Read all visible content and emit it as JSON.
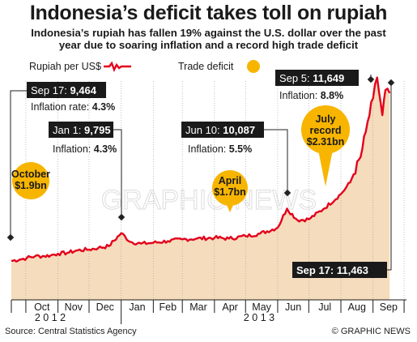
{
  "title": "Indonesia’s deficit takes toll on rupiah",
  "subtitle_line1": "Indonesia’s rupiah has fallen 19% against the U.S. dollar over the past",
  "subtitle_line2": "year due to soaring inflation and a record high trade deficit",
  "legend": {
    "rupiah": "Rupiah per US$",
    "deficit": "Trade deficit"
  },
  "source": "Source: Central Statistics Agency",
  "credit": "© GRAPHIC NEWS",
  "watermark": "GRAPHIC NEWS",
  "colors": {
    "line": "#e3001b",
    "area": "#f5dcbc",
    "bubble": "#f7b500",
    "label_box": "#1a1a1a",
    "gridline": "#999999"
  },
  "annotations": {
    "sep17_2012": {
      "date": "Sep 17:",
      "value": "9,464",
      "inflation_label": "Inflation rate:",
      "inflation": "4.3%"
    },
    "jan1": {
      "date": "Jan 1:",
      "value": "9,795",
      "inflation_label": "Inflation:",
      "inflation": "4.3%"
    },
    "jun10": {
      "date": "Jun 10:",
      "value": "10,087",
      "inflation_label": "Inflation:",
      "inflation": "5.5%"
    },
    "sep5": {
      "date": "Sep 5:",
      "value": "11,649",
      "inflation_label": "Inflation:",
      "inflation": "8.8%"
    },
    "sep17_2013": {
      "date": "Sep 17:",
      "value": "11,463"
    }
  },
  "bubbles": [
    {
      "line1": "October",
      "line2": "$1.9bn"
    },
    {
      "line1": "April",
      "line2": "$1.7bn"
    },
    {
      "line1": "July",
      "line1b": "record",
      "line2": "$2.31bn"
    }
  ],
  "chart_data": {
    "type": "area",
    "title": "Indonesia’s deficit takes toll on rupiah",
    "series": [
      {
        "name": "Rupiah per US$",
        "points": [
          [
            "2012-09-17",
            9464
          ],
          [
            "2012-09-25",
            9480
          ],
          [
            "2012-10-02",
            9500
          ],
          [
            "2012-10-10",
            9520
          ],
          [
            "2012-10-17",
            9520
          ],
          [
            "2012-10-25",
            9530
          ],
          [
            "2012-11-01",
            9550
          ],
          [
            "2012-11-10",
            9560
          ],
          [
            "2012-11-20",
            9590
          ],
          [
            "2012-12-01",
            9600
          ],
          [
            "2012-12-10",
            9620
          ],
          [
            "2012-12-20",
            9640
          ],
          [
            "2013-01-01",
            9795
          ],
          [
            "2013-01-10",
            9690
          ],
          [
            "2013-01-20",
            9670
          ],
          [
            "2013-02-01",
            9680
          ],
          [
            "2013-02-15",
            9700
          ],
          [
            "2013-03-01",
            9720
          ],
          [
            "2013-03-15",
            9730
          ],
          [
            "2013-04-01",
            9740
          ],
          [
            "2013-04-15",
            9730
          ],
          [
            "2013-05-01",
            9760
          ],
          [
            "2013-05-15",
            9790
          ],
          [
            "2013-06-01",
            9860
          ],
          [
            "2013-06-10",
            10087
          ],
          [
            "2013-06-20",
            9950
          ],
          [
            "2013-07-01",
            9960
          ],
          [
            "2013-07-15",
            10080
          ],
          [
            "2013-08-01",
            10260
          ],
          [
            "2013-08-10",
            10400
          ],
          [
            "2013-08-20",
            10700
          ],
          [
            "2013-08-25",
            11000
          ],
          [
            "2013-09-01",
            11400
          ],
          [
            "2013-09-05",
            11649
          ],
          [
            "2013-09-10",
            11200
          ],
          [
            "2013-09-13",
            11500
          ],
          [
            "2013-09-17",
            11463
          ]
        ]
      }
    ],
    "trade_deficits": [
      {
        "month": "October 2012",
        "value": 1.9,
        "unit": "$bn"
      },
      {
        "month": "April 2013",
        "value": 1.7,
        "unit": "$bn"
      },
      {
        "month": "July 2013",
        "value": 2.31,
        "unit": "$bn"
      }
    ],
    "x_ticks": [
      "Oct",
      "Nov",
      "Dec",
      "Jan",
      "Feb",
      "Mar",
      "Apr",
      "May",
      "Jun",
      "Jul",
      "Aug",
      "Sep"
    ],
    "year_labels": [
      "2 0 1 2",
      "2 0 1 3"
    ],
    "xlim": [
      "2012-09-17",
      "2013-09-20"
    ],
    "ylim": [
      9000,
      11800
    ],
    "grid": true,
    "legend_position": "top-left"
  }
}
